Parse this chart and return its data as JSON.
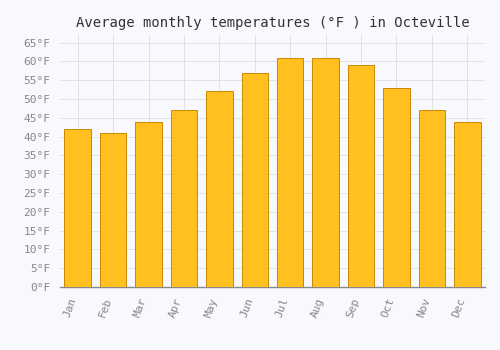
{
  "months": [
    "Jan",
    "Feb",
    "Mar",
    "Apr",
    "May",
    "Jun",
    "Jul",
    "Aug",
    "Sep",
    "Oct",
    "Nov",
    "Dec"
  ],
  "values": [
    42,
    41,
    44,
    47,
    52,
    57,
    61,
    61,
    59,
    53,
    47,
    44
  ],
  "bar_color": "#FFC020",
  "bar_edge_color": "#CC8800",
  "title": "Average monthly temperatures (°F ) in Octeville",
  "ylim": [
    0,
    67
  ],
  "ytick_values": [
    0,
    5,
    10,
    15,
    20,
    25,
    30,
    35,
    40,
    45,
    50,
    55,
    60,
    65
  ],
  "background_color": "#F8F8FF",
  "plot_bg_color": "#F8F8FF",
  "grid_color": "#dddddd",
  "title_fontsize": 10,
  "tick_fontsize": 8,
  "font_family": "monospace",
  "tick_color": "#888888",
  "bar_width": 0.75
}
